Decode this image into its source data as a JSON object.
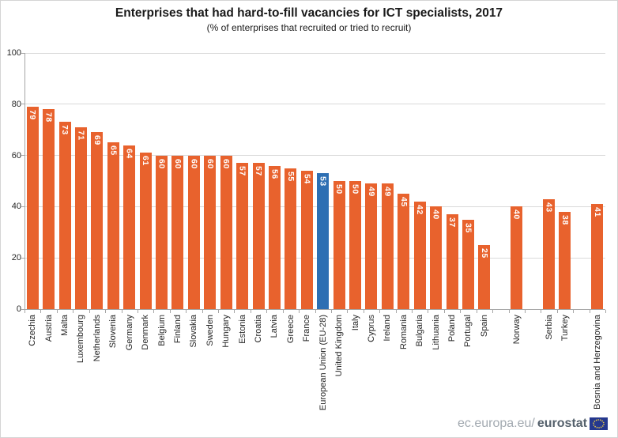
{
  "title": "Enterprises that had hard-to-fill vacancies for ICT specialists, 2017",
  "subtitle": "(% of enterprises that recruited or tried to recruit)",
  "footer": {
    "url_prefix": "ec.europa.eu/",
    "url_bold": "eurostat",
    "logo_icon": "eu-flag-icon",
    "logo_color": "#25388e",
    "logo_star_color": "#f2cf46"
  },
  "chart_data": {
    "type": "bar",
    "title": "Enterprises that had hard-to-fill vacancies for ICT specialists, 2017",
    "subtitle": "(% of enterprises that recruited or tried to recruit)",
    "xlabel": "",
    "ylabel": "",
    "ylim": [
      0,
      100
    ],
    "yticks": [
      0,
      20,
      40,
      60,
      80,
      100
    ],
    "grid": true,
    "legend": "none",
    "bar_color": "#e8622d",
    "highlight_color": "#2d6fb3",
    "value_label_color": "#ffffff",
    "bars": [
      {
        "label": "Czechia",
        "value": 79
      },
      {
        "label": "Austria",
        "value": 78
      },
      {
        "label": "Malta",
        "value": 73
      },
      {
        "label": "Luxembourg",
        "value": 71
      },
      {
        "label": "Netherlands",
        "value": 69
      },
      {
        "label": "Slovenia",
        "value": 65
      },
      {
        "label": "Germany",
        "value": 64
      },
      {
        "label": "Denmark",
        "value": 61
      },
      {
        "label": "Belgium",
        "value": 60
      },
      {
        "label": "Finland",
        "value": 60
      },
      {
        "label": "Slovakia",
        "value": 60
      },
      {
        "label": "Sweden",
        "value": 60
      },
      {
        "label": "Hungary",
        "value": 60
      },
      {
        "label": "Estonia",
        "value": 57
      },
      {
        "label": "Croatia",
        "value": 57
      },
      {
        "label": "Latvia",
        "value": 56
      },
      {
        "label": "Greece",
        "value": 55
      },
      {
        "label": "France",
        "value": 54
      },
      {
        "label": "European Union (EU-28)",
        "value": 53,
        "highlight": true
      },
      {
        "label": "United Kingdom",
        "value": 50
      },
      {
        "label": "Italy",
        "value": 50
      },
      {
        "label": "Cyprus",
        "value": 49
      },
      {
        "label": "Ireland",
        "value": 49
      },
      {
        "label": "Romania",
        "value": 45
      },
      {
        "label": "Bulgaria",
        "value": 42
      },
      {
        "label": "Lithuania",
        "value": 40
      },
      {
        "label": "Poland",
        "value": 37
      },
      {
        "label": "Portugal",
        "value": 35
      },
      {
        "label": "Spain",
        "value": 25
      },
      {
        "label": "",
        "value": null
      },
      {
        "label": "Norway",
        "value": 40
      },
      {
        "label": "",
        "value": null
      },
      {
        "label": "Serbia",
        "value": 43
      },
      {
        "label": "Turkey",
        "value": 38
      },
      {
        "label": "",
        "value": null
      },
      {
        "label": "Bosnia and Herzegovina",
        "value": 41
      }
    ]
  }
}
